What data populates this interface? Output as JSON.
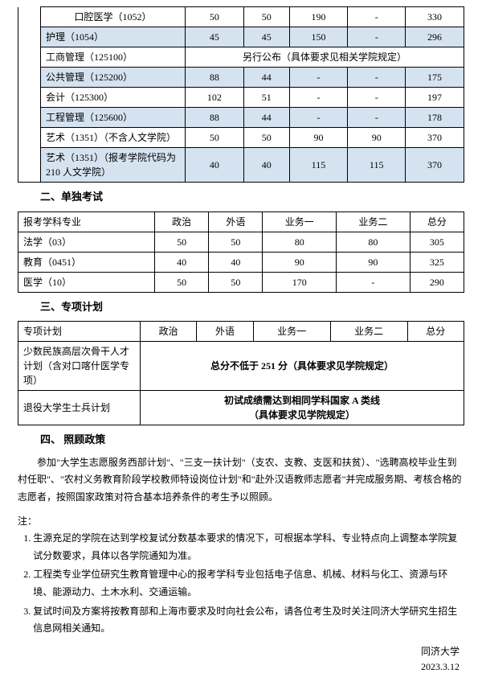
{
  "colors": {
    "row_alt_bg": "#d5e3f0",
    "border": "#000000",
    "text": "#000000",
    "bg": "#ffffff"
  },
  "table1": {
    "rows": [
      {
        "name": "口腔医学（1052）",
        "c": [
          "50",
          "50",
          "190",
          "-",
          "330"
        ],
        "blue": false
      },
      {
        "name": "护理（1054）",
        "c": [
          "45",
          "45",
          "150",
          "-",
          "296"
        ],
        "blue": true
      },
      {
        "name": "工商管理（125100）",
        "merge": "另行公布（具体要求见相关学院规定）",
        "blue": false
      },
      {
        "name": "公共管理（125200）",
        "c": [
          "88",
          "44",
          "-",
          "-",
          "175"
        ],
        "blue": true
      },
      {
        "name": "会计（125300）",
        "c": [
          "102",
          "51",
          "-",
          "-",
          "197"
        ],
        "blue": false
      },
      {
        "name": "工程管理（125600）",
        "c": [
          "88",
          "44",
          "-",
          "-",
          "178"
        ],
        "blue": true
      },
      {
        "name": "艺术（1351）（不含人文学院）",
        "c": [
          "50",
          "50",
          "90",
          "90",
          "370"
        ],
        "blue": false
      },
      {
        "name": "艺术（1351）（报考学院代码为 210 人文学院）",
        "c": [
          "40",
          "40",
          "115",
          "115",
          "370"
        ],
        "blue": true
      }
    ]
  },
  "section2": {
    "title": "二、单独考试",
    "header": [
      "报考学科专业",
      "政治",
      "外语",
      "业务一",
      "业务二",
      "总分"
    ],
    "rows": [
      {
        "name": "法学（03）",
        "c": [
          "50",
          "50",
          "80",
          "80",
          "305"
        ]
      },
      {
        "name": "教育（0451）",
        "c": [
          "40",
          "40",
          "90",
          "90",
          "325"
        ]
      },
      {
        "name": "医学（10）",
        "c": [
          "50",
          "50",
          "170",
          "-",
          "290"
        ]
      }
    ]
  },
  "section3": {
    "title": "三、专项计划",
    "header": [
      "专项计划",
      "政治",
      "外语",
      "业务一",
      "业务二",
      "总分"
    ],
    "rows": [
      {
        "name": "少数民族高层次骨干人才计划（含对口喀什医学专项）",
        "msg": "总分不低于 251 分（具体要求见学院规定）"
      },
      {
        "name": "退役大学生士兵计划",
        "msg": "初试成绩需达到相同学科国家 A 类线\n（具体要求见学院规定）"
      }
    ]
  },
  "section4": {
    "title": "四、 照顾政策",
    "para": "参加\"大学生志愿服务西部计划\"、\"三支一扶计划\"（支农、支教、支医和扶贫）、\"选聘高校毕业生到村任职\"、\"农村义务教育阶段学校教师特设岗位计划\"和\"赴外汉语教师志愿者\"并完成服务期、考核合格的志愿者，按照国家政策对符合基本培养条件的考生予以照顾。"
  },
  "notes": {
    "label": "注：",
    "items": [
      "生源充足的学院在达到学校复试分数基本要求的情况下，可根据本学科、专业特点向上调整本学院复试分数要求，具体以各学院通知为准。",
      "工程类专业学位研究生教育管理中心的报考学科专业包括电子信息、机械、材料与化工、资源与环境、能源动力、土木水利、交通运输。",
      "复试时间及方案将按教育部和上海市要求及时向社会公布，请各位考生及时关注同济大学研究生招生信息网相关通知。"
    ]
  },
  "signature": {
    "org": "同济大学",
    "date": "2023.3.12"
  }
}
